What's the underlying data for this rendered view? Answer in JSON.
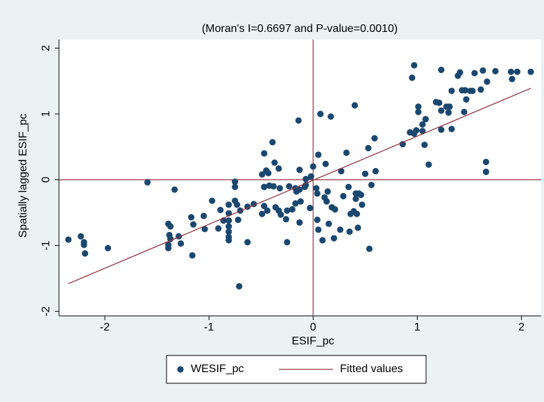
{
  "chart_data": {
    "type": "scatter",
    "title": "(Moran's I=0.6697 and P-value=0.0010)",
    "x_label": "ESIF_pc",
    "y_label": "Spatially lagged ESIF_pc",
    "xlim": [
      -2.44,
      2.19
    ],
    "ylim": [
      -2.07,
      2.13
    ],
    "xticks": [
      -2,
      -1,
      0,
      1,
      2
    ],
    "yticks": [
      -2,
      -1,
      0,
      1,
      2
    ],
    "grid": false,
    "xline": 0,
    "yline": 0,
    "reference_color": "#90353b",
    "legend": "bottom",
    "series": [
      {
        "name": "WESIF_pc",
        "type": "scatter",
        "color": "#1a476f",
        "x": [
          -2.35,
          -2.23,
          -2.2,
          -2.2,
          -2.19,
          -1.97,
          -1.59,
          -1.33,
          -1.39,
          -1.37,
          -1.38,
          -1.37,
          -1.39,
          -1.39,
          -1.29,
          -1.27,
          -1.17,
          -1.15,
          -1.16,
          -1.05,
          -1.04,
          -0.97,
          -0.89,
          -0.91,
          -0.86,
          -0.81,
          -0.81,
          -0.81,
          -0.81,
          -0.81,
          -0.81,
          -0.81,
          -0.75,
          -0.75,
          -0.75,
          -0.73,
          -0.7,
          -0.71,
          -0.72,
          -0.63,
          -0.63,
          -0.57,
          -0.47,
          -0.49,
          -0.47,
          -0.45,
          -0.43,
          -0.47,
          -0.44,
          -0.49,
          -0.42,
          -0.38,
          -0.39,
          -0.37,
          -0.33,
          -0.32,
          -0.36,
          -0.33,
          -0.31,
          -0.25,
          -0.26,
          -0.25,
          -0.23,
          -0.2,
          -0.17,
          -0.17,
          -0.13,
          -0.16,
          -0.13,
          -0.14,
          -0.12,
          -0.13,
          -0.08,
          -0.07,
          -0.07,
          -0.03,
          -0.02,
          0,
          0.03,
          0.04,
          0.05,
          0.04,
          0.05,
          0.07,
          0.09,
          0.12,
          0.11,
          0.14,
          0.13,
          0.15,
          0.17,
          0.18,
          0.21,
          0.2,
          0.26,
          0.27,
          0.29,
          0.32,
          0.34,
          0.35,
          0.36,
          0.39,
          0.4,
          0.41,
          0.41,
          0.42,
          0.43,
          0.44,
          0.46,
          0.47,
          0.5,
          0.53,
          0.54,
          0.56,
          0.59,
          0.6,
          0.86,
          0.93,
          0.97,
          0.95,
          0.97,
          0.99,
          1.01,
          1.01,
          1.05,
          1.05,
          1.07,
          1.08,
          1.11,
          1.18,
          1.21,
          1.23,
          1.23,
          1.23,
          1.28,
          1.3,
          1.31,
          1.33,
          1.33,
          1.39,
          1.41,
          1.43,
          1.45,
          1.46,
          1.47,
          1.51,
          1.53,
          1.55,
          1.61,
          1.63,
          1.66,
          1.66,
          1.67,
          1.75,
          1.9,
          1.91,
          1.96,
          2.09
        ],
        "values": [
          -0.91,
          -0.86,
          -0.95,
          -0.99,
          -1.12,
          -1.04,
          -0.04,
          -0.15,
          -0.67,
          -0.71,
          -0.84,
          -0.9,
          -0.99,
          -1.04,
          -0.86,
          -0.97,
          -0.57,
          -0.68,
          -1.15,
          -0.55,
          -0.75,
          -0.32,
          -0.46,
          -0.74,
          -0.62,
          -0.38,
          -0.51,
          -0.62,
          -0.71,
          -0.79,
          -0.87,
          -0.92,
          -0.03,
          -0.11,
          -0.32,
          -0.38,
          -0.47,
          -1.62,
          -0.61,
          -0.41,
          -0.95,
          -0.37,
          0.4,
          0.08,
          -0.11,
          0.14,
          0.1,
          -0.4,
          -0.47,
          -0.52,
          -0.09,
          -0.1,
          0.57,
          0.26,
          0.17,
          -0.13,
          -0.42,
          -0.47,
          -0.53,
          -0.47,
          -0.6,
          -0.95,
          -0.1,
          -0.45,
          -0.13,
          -0.36,
          0.15,
          -0.18,
          -0.15,
          0.9,
          -0.33,
          -0.65,
          -0.11,
          0.01,
          -0.08,
          -0.43,
          0.05,
          0.2,
          -0.13,
          -0.21,
          0.38,
          -0.61,
          -0.76,
          1.0,
          -0.92,
          0.24,
          -0.27,
          -0.18,
          -0.33,
          -0.67,
          0.96,
          -0.42,
          -0.45,
          -0.89,
          -0.76,
          0.13,
          -0.25,
          0.41,
          -0.11,
          -0.79,
          -0.52,
          -0.48,
          1.13,
          -0.21,
          -0.29,
          -0.52,
          -0.73,
          -0.21,
          -0.23,
          -0.38,
          0.09,
          0.48,
          -1.05,
          -0.08,
          0.63,
          0.13,
          0.54,
          0.72,
          0.7,
          1.55,
          1.74,
          0.75,
          1.11,
          1.03,
          0.74,
          0.84,
          0.53,
          0.92,
          0.23,
          1.18,
          1.17,
          1.05,
          0.76,
          1.67,
          1.11,
          1.02,
          1.11,
          1.35,
          0.77,
          1.58,
          1.63,
          1.36,
          1.03,
          1.36,
          1.22,
          1.35,
          1.35,
          1.62,
          1.37,
          1.66,
          0.27,
          0.12,
          1.49,
          1.65,
          1.64,
          1.53,
          1.64,
          1.64
        ]
      },
      {
        "name": "Fitted values",
        "type": "line",
        "color": "#90353b",
        "x": [
          -2.35,
          2.09
        ],
        "values": [
          -1.58,
          1.39
        ]
      }
    ]
  }
}
